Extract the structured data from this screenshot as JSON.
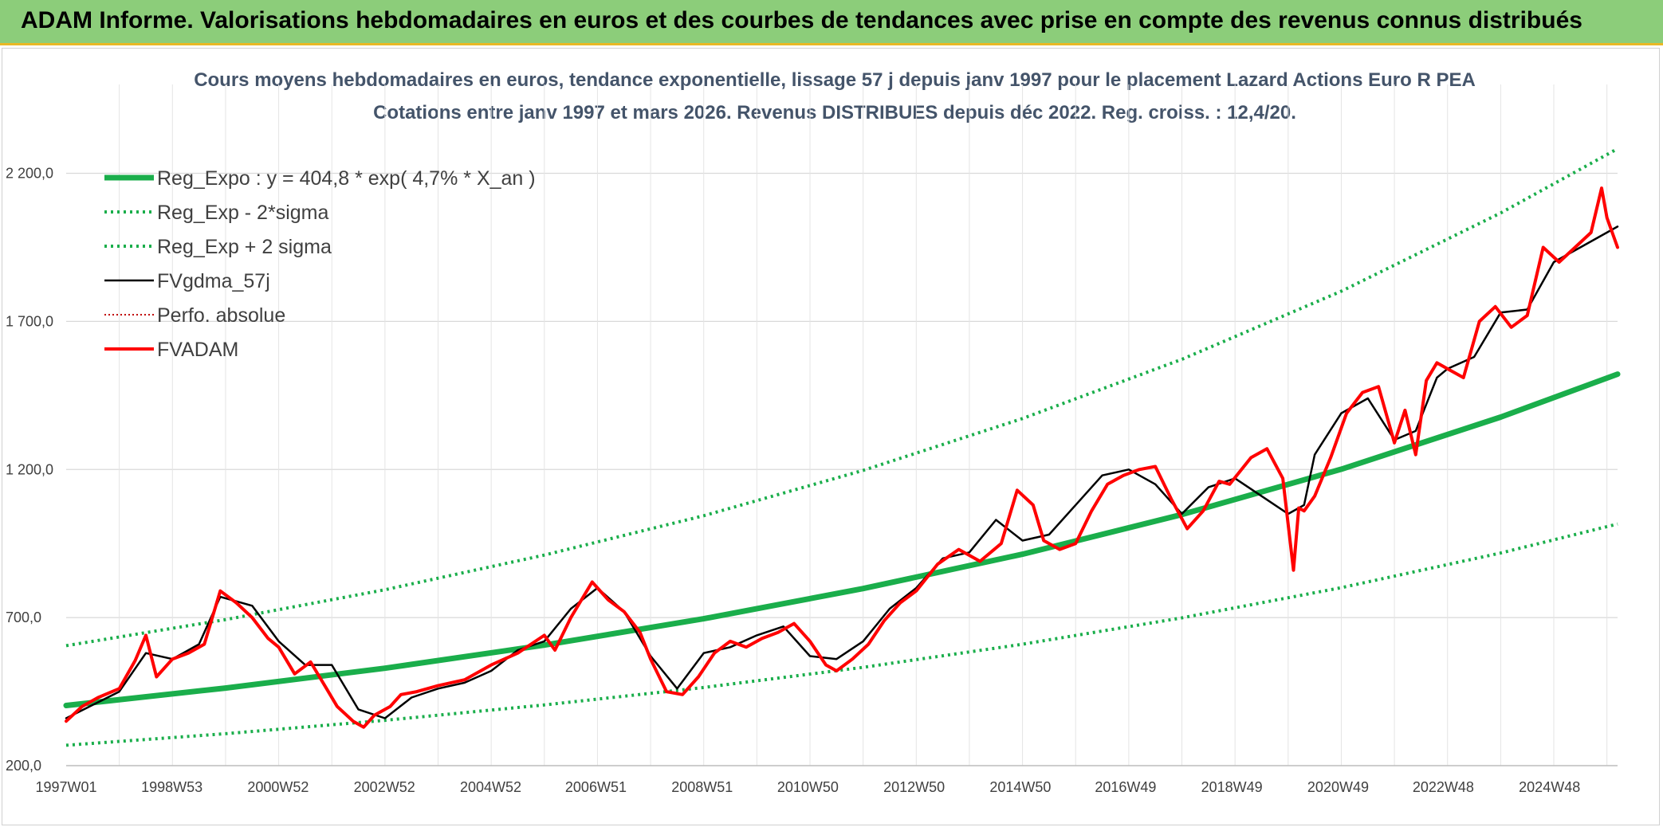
{
  "banner": {
    "title": "ADAM Informe. Valorisations hebdomadaires en euros et des courbes de tendances avec prise en compte des revenus connus distribués",
    "background": "#8ccd7a"
  },
  "chart_data": {
    "type": "line",
    "title": "Cours moyens hebdomadaires en euros, tendance exponentielle, lissage 57 j depuis janv 1997 pour le placement Lazard Actions Euro R PEA",
    "subtitle": "Cotations entre janv 1997 et mars 2026. Revenus DISTRIBUES depuis déc 2022. Reg. croiss. : 12,4/20.",
    "xlabel": "",
    "ylabel": "",
    "x_range": [
      1997.0,
      2026.2
    ],
    "ylim": [
      200,
      2500
    ],
    "y_ticks": [
      200,
      700,
      1200,
      1700,
      2200
    ],
    "y_tick_labels": [
      "200,0",
      "700,0",
      "1 200,0",
      "1 700,0",
      "2 200,0"
    ],
    "x_ticks": [
      1997.0,
      1998.99,
      2000.99,
      2002.99,
      2004.99,
      2006.97,
      2008.97,
      2010.96,
      2012.96,
      2014.96,
      2016.94,
      2018.94,
      2020.94,
      2022.92,
      2024.92
    ],
    "x_tick_labels": [
      "1997W01",
      "1998W53",
      "2000W52",
      "2002W52",
      "2004W52",
      "2006W51",
      "2008W51",
      "2010W50",
      "2012W50",
      "2014W50",
      "2016W49",
      "2018W49",
      "2020W49",
      "2022W48",
      "2024W48"
    ],
    "grid": true,
    "legend_position": "top-left",
    "series": [
      {
        "name": "Reg_Expo : y = 404,8 * exp( 4,7% *  X_an )",
        "color": "#1aae4b",
        "style": "solid-thick",
        "x": [
          1997.0,
          2000.0,
          2003.0,
          2006.0,
          2009.0,
          2012.0,
          2015.0,
          2018.0,
          2021.0,
          2024.0,
          2026.2
        ],
        "values": [
          403,
          462,
          529,
          607,
          696,
          798,
          914,
          1048,
          1201,
          1377,
          1522
        ]
      },
      {
        "name": "Reg_Exp - 2*sigma",
        "color": "#1aae4b",
        "style": "dotted",
        "x": [
          1997.0,
          2000.0,
          2003.0,
          2006.0,
          2009.0,
          2012.0,
          2015.0,
          2018.0,
          2021.0,
          2024.0,
          2026.2
        ],
        "values": [
          269,
          308,
          353,
          405,
          464,
          532,
          610,
          699,
          801,
          918,
          1016
        ]
      },
      {
        "name": "Reg_Exp + 2 sigma",
        "color": "#1aae4b",
        "style": "dotted",
        "x": [
          1997.0,
          2000.0,
          2003.0,
          2006.0,
          2009.0,
          2012.0,
          2015.0,
          2018.0,
          2021.0,
          2024.0,
          2026.2
        ],
        "values": [
          605,
          693,
          794,
          911,
          1044,
          1197,
          1372,
          1572,
          1802,
          2066,
          2283
        ]
      },
      {
        "name": "FVgdma_57j",
        "color": "#000000",
        "style": "solid",
        "x": [
          1997.0,
          1997.5,
          1998.0,
          1998.5,
          1999.0,
          1999.5,
          1999.9,
          2000.5,
          2001.0,
          2001.5,
          2002.0,
          2002.5,
          2003.0,
          2003.5,
          2004.0,
          2004.5,
          2005.0,
          2005.5,
          2006.0,
          2006.5,
          2007.0,
          2007.5,
          2008.0,
          2008.5,
          2009.0,
          2009.5,
          2010.0,
          2010.5,
          2011.0,
          2011.5,
          2012.0,
          2012.5,
          2013.0,
          2013.5,
          2014.0,
          2014.5,
          2015.0,
          2015.5,
          2016.0,
          2016.5,
          2017.0,
          2017.5,
          2018.0,
          2018.5,
          2019.0,
          2019.5,
          2020.0,
          2020.3,
          2020.5,
          2021.0,
          2021.5,
          2022.0,
          2022.4,
          2022.8,
          2023.0,
          2023.5,
          2024.0,
          2024.5,
          2025.0,
          2025.5,
          2026.2
        ],
        "values": [
          360,
          405,
          450,
          580,
          560,
          610,
          770,
          740,
          620,
          540,
          540,
          390,
          360,
          430,
          460,
          480,
          520,
          590,
          620,
          730,
          800,
          720,
          570,
          460,
          580,
          600,
          640,
          670,
          570,
          560,
          620,
          730,
          800,
          900,
          920,
          1030,
          960,
          980,
          1080,
          1180,
          1200,
          1150,
          1050,
          1140,
          1170,
          1110,
          1050,
          1080,
          1250,
          1390,
          1440,
          1300,
          1330,
          1510,
          1540,
          1580,
          1730,
          1740,
          1900,
          1950,
          2020
        ]
      },
      {
        "name": "Perfo. absolue",
        "color": "#c00000",
        "style": "dotted",
        "x": [],
        "values": []
      },
      {
        "name": "FVADAM",
        "color": "#ff0000",
        "style": "solid-thick",
        "x": [
          1997.0,
          1997.3,
          1997.6,
          1998.0,
          1998.3,
          1998.5,
          1998.7,
          1999.0,
          1999.3,
          1999.6,
          1999.9,
          2000.2,
          2000.5,
          2000.8,
          2001.0,
          2001.3,
          2001.6,
          2001.9,
          2002.1,
          2002.4,
          2002.6,
          2002.8,
          2003.1,
          2003.3,
          2003.6,
          2004.0,
          2004.5,
          2005.0,
          2005.5,
          2006.0,
          2006.2,
          2006.5,
          2006.9,
          2007.2,
          2007.5,
          2007.8,
          2008.0,
          2008.3,
          2008.6,
          2008.9,
          2009.2,
          2009.5,
          2009.8,
          2010.1,
          2010.4,
          2010.7,
          2011.0,
          2011.3,
          2011.5,
          2011.8,
          2012.1,
          2012.4,
          2012.7,
          2013.0,
          2013.4,
          2013.8,
          2014.2,
          2014.6,
          2014.9,
          2015.2,
          2015.4,
          2015.7,
          2016.0,
          2016.3,
          2016.6,
          2016.9,
          2017.2,
          2017.5,
          2017.8,
          2018.1,
          2018.4,
          2018.7,
          2018.9,
          2019.3,
          2019.6,
          2019.9,
          2020.1,
          2020.2,
          2020.3,
          2020.5,
          2020.8,
          2021.1,
          2021.4,
          2021.7,
          2022.0,
          2022.2,
          2022.4,
          2022.6,
          2022.8,
          2023.0,
          2023.3,
          2023.6,
          2023.9,
          2024.2,
          2024.5,
          2024.8,
          2025.1,
          2025.4,
          2025.7,
          2025.9,
          2026.0,
          2026.2
        ],
        "values": [
          350,
          400,
          430,
          460,
          555,
          640,
          500,
          560,
          580,
          610,
          790,
          750,
          700,
          630,
          600,
          510,
          550,
          460,
          400,
          350,
          330,
          370,
          400,
          440,
          450,
          470,
          490,
          540,
          580,
          640,
          590,
          700,
          820,
          760,
          720,
          650,
          560,
          450,
          440,
          500,
          580,
          620,
          600,
          630,
          650,
          680,
          620,
          540,
          520,
          560,
          610,
          690,
          750,
          790,
          880,
          930,
          890,
          950,
          1130,
          1080,
          960,
          930,
          950,
          1060,
          1150,
          1180,
          1200,
          1210,
          1100,
          1000,
          1060,
          1160,
          1150,
          1240,
          1270,
          1170,
          860,
          1070,
          1060,
          1110,
          1240,
          1390,
          1460,
          1480,
          1290,
          1400,
          1250,
          1500,
          1560,
          1540,
          1510,
          1700,
          1750,
          1680,
          1720,
          1950,
          1900,
          1950,
          2000,
          2150,
          2050,
          1950
        ]
      }
    ]
  }
}
